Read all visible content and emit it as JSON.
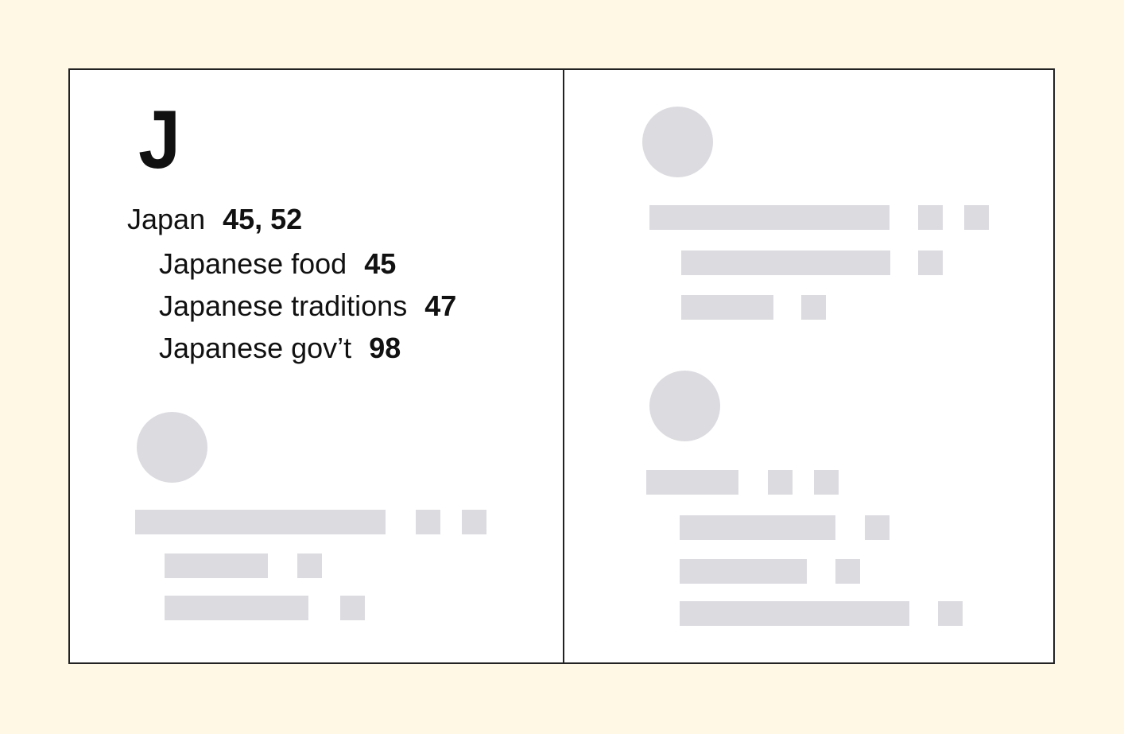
{
  "colors": {
    "background": "#fef8e5",
    "page": "#ffffff",
    "border": "#222222",
    "text": "#111111",
    "placeholder": "#dcdbe0"
  },
  "index": {
    "letter": "J",
    "entries": [
      {
        "term": "Japan",
        "pages": "45, 52",
        "level": 0
      },
      {
        "term": "Japanese food",
        "pages": "45",
        "level": 1
      },
      {
        "term": "Japanese traditions",
        "pages": "47",
        "level": 1
      },
      {
        "term": "Japanese gov’t",
        "pages": "98",
        "level": 1
      }
    ]
  }
}
